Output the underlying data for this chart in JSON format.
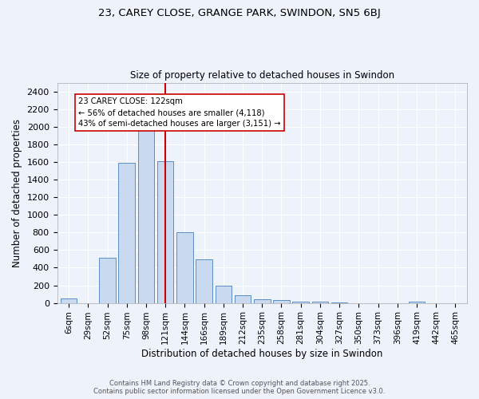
{
  "title_line1": "23, CAREY CLOSE, GRANGE PARK, SWINDON, SN5 6BJ",
  "title_line2": "Size of property relative to detached houses in Swindon",
  "xlabel": "Distribution of detached houses by size in Swindon",
  "ylabel": "Number of detached properties",
  "bar_labels": [
    "6sqm",
    "29sqm",
    "52sqm",
    "75sqm",
    "98sqm",
    "121sqm",
    "144sqm",
    "166sqm",
    "189sqm",
    "212sqm",
    "235sqm",
    "258sqm",
    "281sqm",
    "304sqm",
    "327sqm",
    "350sqm",
    "373sqm",
    "396sqm",
    "419sqm",
    "442sqm",
    "465sqm"
  ],
  "bar_values": [
    55,
    0,
    510,
    1590,
    1970,
    1610,
    800,
    490,
    195,
    90,
    45,
    30,
    15,
    10,
    5,
    0,
    0,
    0,
    15,
    0,
    0
  ],
  "bar_color": "#c9d9f0",
  "bar_edgecolor": "#5b8ec4",
  "vline_color": "#cc0000",
  "annotation_text": "23 CAREY CLOSE: 122sqm\n← 56% of detached houses are smaller (4,118)\n43% of semi-detached houses are larger (3,151) →",
  "annotation_box_edgecolor": "#cc0000",
  "annotation_box_facecolor": "white",
  "ylim": [
    0,
    2500
  ],
  "yticks": [
    0,
    200,
    400,
    600,
    800,
    1000,
    1200,
    1400,
    1600,
    1800,
    2000,
    2200,
    2400
  ],
  "background_color": "#eef2fb",
  "grid_color": "#ffffff",
  "footer_line1": "Contains HM Land Registry data © Crown copyright and database right 2025.",
  "footer_line2": "Contains public sector information licensed under the Open Government Licence v3.0.",
  "fig_width": 6.0,
  "fig_height": 5.0,
  "dpi": 100
}
